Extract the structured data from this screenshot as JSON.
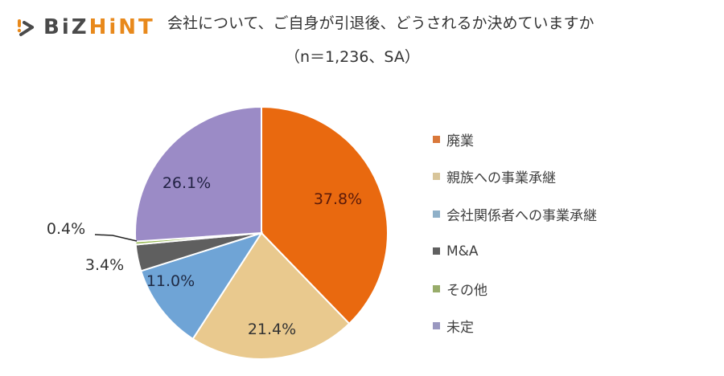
{
  "logo": {
    "part1": "BiZ",
    "part2": "HiNT"
  },
  "header": {
    "title": "会社について、ご自身が引退後、どうされるか決めていますか",
    "subtitle": "（n＝1,236、SA）"
  },
  "colors": {
    "brand_orange": "#e8891c",
    "brand_gray": "#4a4a4a"
  },
  "chart_data": {
    "type": "pie",
    "title": "会社について、ご自身が引退後、どうされるか決めていますか",
    "subtitle": "（n＝1,236、SA）",
    "n": 1236,
    "categories": [
      "廃業",
      "親族への事業承継",
      "会社関係者への事業承継",
      "M&A",
      "その他",
      "未定"
    ],
    "values": [
      37.8,
      21.4,
      11.0,
      3.4,
      0.4,
      26.1
    ],
    "labels": [
      "37.8%",
      "21.4%",
      "11.0%",
      "3.4%",
      "0.4%",
      "26.1%"
    ],
    "colors": [
      "#e9690f",
      "#e9c98e",
      "#6fa4d6",
      "#5f5f5f",
      "#9bbb59",
      "#9b8bc6"
    ],
    "label_colors": [
      "#5a1a0a",
      "#333333",
      "#1f2a44",
      "#333333",
      "#333333",
      "#222244"
    ],
    "start_angle_deg": 0,
    "direction": "clockwise",
    "legend_position": "right",
    "unit": "%"
  },
  "legend": {
    "items": [
      {
        "label": "廃業",
        "color": "#d9783a"
      },
      {
        "label": "親族への事業承継",
        "color": "#d8c59a"
      },
      {
        "label": "会社関係者への事業承継",
        "color": "#8fb0c8"
      },
      {
        "label": "M&A",
        "color": "#606060"
      },
      {
        "label": "その他",
        "color": "#98ac6a"
      },
      {
        "label": "未定",
        "color": "#9a98c0"
      }
    ]
  }
}
